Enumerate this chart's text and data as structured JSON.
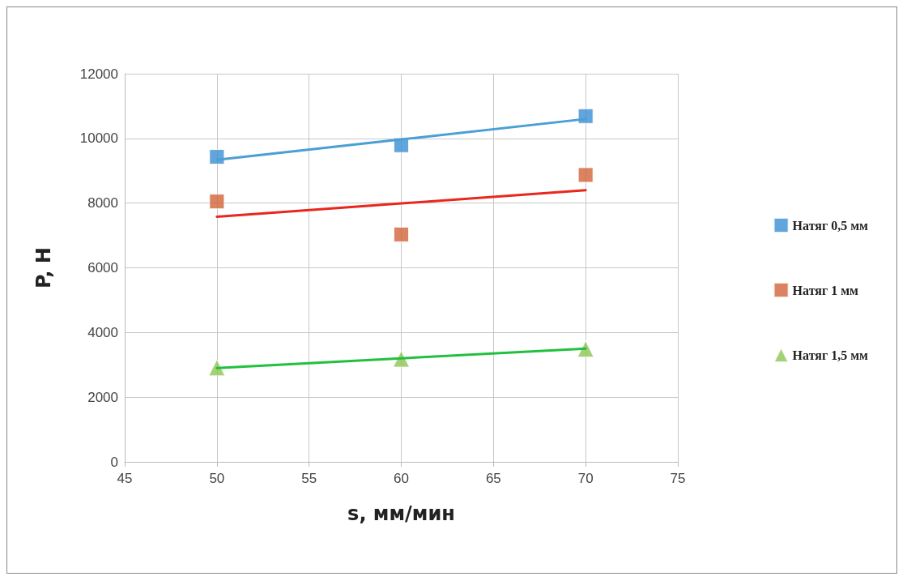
{
  "chart_data": {
    "type": "scatter",
    "xlabel": "s, мм/мин",
    "ylabel": "P, Н",
    "x": [
      50,
      60,
      70
    ],
    "xlim": [
      45,
      75
    ],
    "xticks": [
      45,
      50,
      55,
      60,
      65,
      70,
      75
    ],
    "ylim": [
      0,
      12000
    ],
    "yticks": [
      0,
      2000,
      4000,
      6000,
      8000,
      10000,
      12000
    ],
    "grid": true,
    "legend": "right",
    "series": [
      {
        "name": "Натяг 0,5 мм",
        "marker": "square",
        "color": "#3b8fd3",
        "values": [
          9430,
          9790,
          10690
        ]
      },
      {
        "name": "Натяг 1 мм",
        "marker": "square",
        "color": "#d2633a",
        "values": [
          8050,
          7030,
          8870
        ]
      },
      {
        "name": "Натяг 1,5 мм",
        "marker": "triangle",
        "color": "#8dc653",
        "values": [
          2910,
          3180,
          3490
        ]
      },
      {
        "type": "line",
        "marker": "none",
        "color": "#4a9fd5",
        "values": [
          9340,
          9970,
          10600
        ]
      },
      {
        "type": "line",
        "marker": "none",
        "color": "#e8281e",
        "values": [
          7580,
          7990,
          8400
        ]
      },
      {
        "type": "line",
        "marker": "none",
        "color": "#22c040",
        "values": [
          2900,
          3200,
          3500
        ]
      }
    ]
  }
}
